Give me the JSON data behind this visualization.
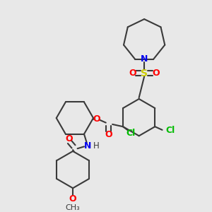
{
  "background_color": "#e8e8e8",
  "bond_color": "#3a3a3a",
  "colors": {
    "O": "#ff0000",
    "N": "#0000ee",
    "S": "#cccc00",
    "Cl": "#00bb00",
    "C": "#3a3a3a"
  },
  "figsize": [
    3.0,
    3.0
  ],
  "dpi": 100
}
